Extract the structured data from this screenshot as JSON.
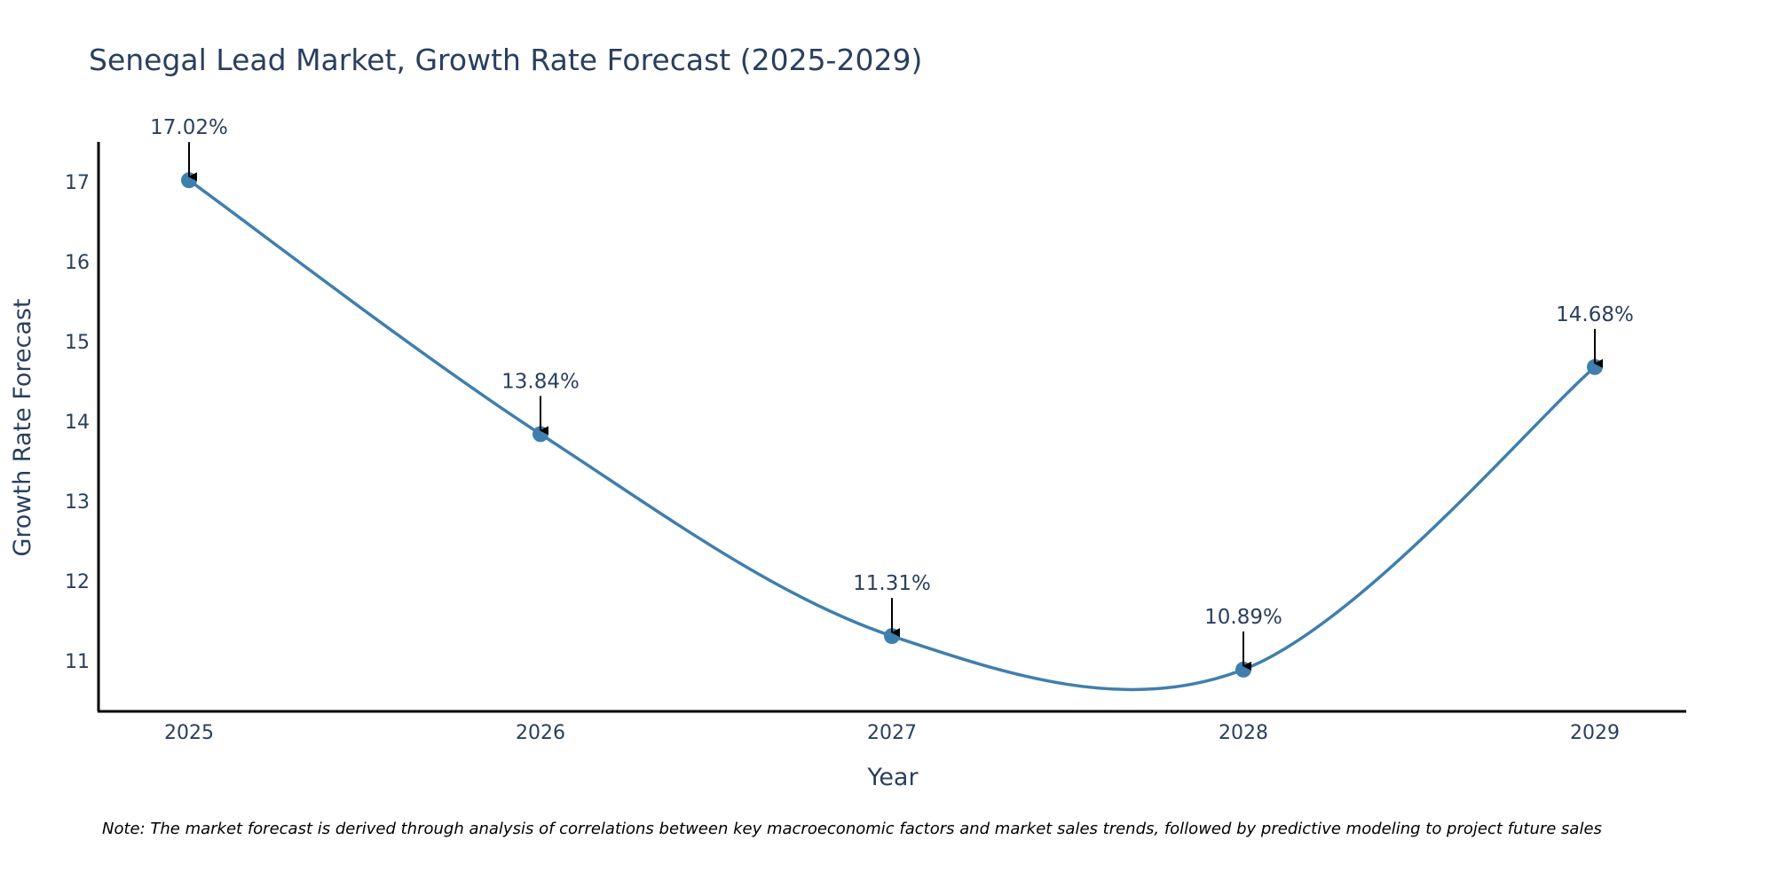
{
  "chart_data": {
    "type": "line",
    "title": "Senegal Lead Market, Growth Rate Forecast (2025-2029)",
    "xlabel": "Year",
    "ylabel": "Growth Rate Forecast",
    "categories": [
      "2025",
      "2026",
      "2027",
      "2028",
      "2029"
    ],
    "values": [
      17.02,
      13.84,
      11.31,
      10.89,
      14.68
    ],
    "data_labels": [
      "17.02%",
      "13.84%",
      "11.31%",
      "10.89%",
      "14.68%"
    ],
    "y_ticks": [
      "11",
      "12",
      "13",
      "14",
      "15",
      "16",
      "17"
    ],
    "ylim": [
      10.35,
      17.5
    ],
    "grid": false,
    "line_shape": "spline",
    "line_color": "#3f7fad",
    "marker_color": "#3f7fad",
    "note": "Note: The market forecast is derived through analysis of correlations between key macroeconomic factors and market sales trends, followed by predictive modeling to project future sales"
  }
}
